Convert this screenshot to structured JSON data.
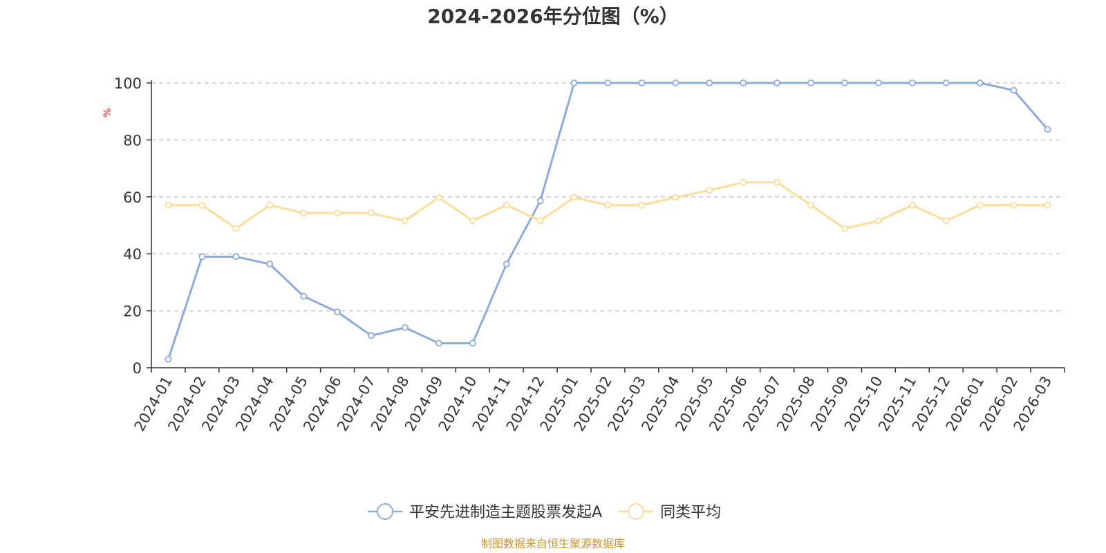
{
  "chart_data": {
    "type": "line",
    "title": "2024-2026年分位图（%）",
    "ylabel": "%",
    "ylim": [
      0,
      100
    ],
    "yticks": [
      0,
      20,
      40,
      60,
      80,
      100
    ],
    "grid": true,
    "legend_position": "bottom-center",
    "categories": [
      "2024-01",
      "2024-02",
      "2024-03",
      "2024-04",
      "2024-05",
      "2024-06",
      "2024-07",
      "2024-08",
      "2024-09",
      "2024-10",
      "2024-11",
      "2024-12",
      "2025-01",
      "2025-02",
      "2025-03",
      "2025-04",
      "2025-05",
      "2025-06",
      "2025-07",
      "2025-08",
      "2025-09",
      "2025-10",
      "2025-11",
      "2025-12",
      "2026-01",
      "2026-02",
      "2026-03"
    ],
    "series": [
      {
        "name": "平安先进制造主题股票发起A",
        "color": "#8eabd8",
        "values": [
          3,
          39,
          39,
          36.4,
          25.1,
          19.6,
          11.3,
          14.1,
          8.6,
          8.6,
          36.4,
          58.6,
          100,
          100,
          100,
          100,
          100,
          100,
          100,
          100,
          100,
          100,
          100,
          100,
          100,
          97.4,
          83.7
        ]
      },
      {
        "name": "同类平均",
        "color": "#fbdc9b",
        "values": [
          57.1,
          57.1,
          48.9,
          57.1,
          54.3,
          54.3,
          54.3,
          51.6,
          59.8,
          51.6,
          57.1,
          51.6,
          59.8,
          57.1,
          57.1,
          59.8,
          62.3,
          65.1,
          65.1,
          57.1,
          48.9,
          51.6,
          57.1,
          51.6,
          57.1,
          57.1,
          57.1
        ]
      }
    ]
  },
  "footer": {
    "source": "制图数据来自恒生聚源数据库",
    "source_color": "#c9952c"
  },
  "ylabel_color": "#e02020"
}
